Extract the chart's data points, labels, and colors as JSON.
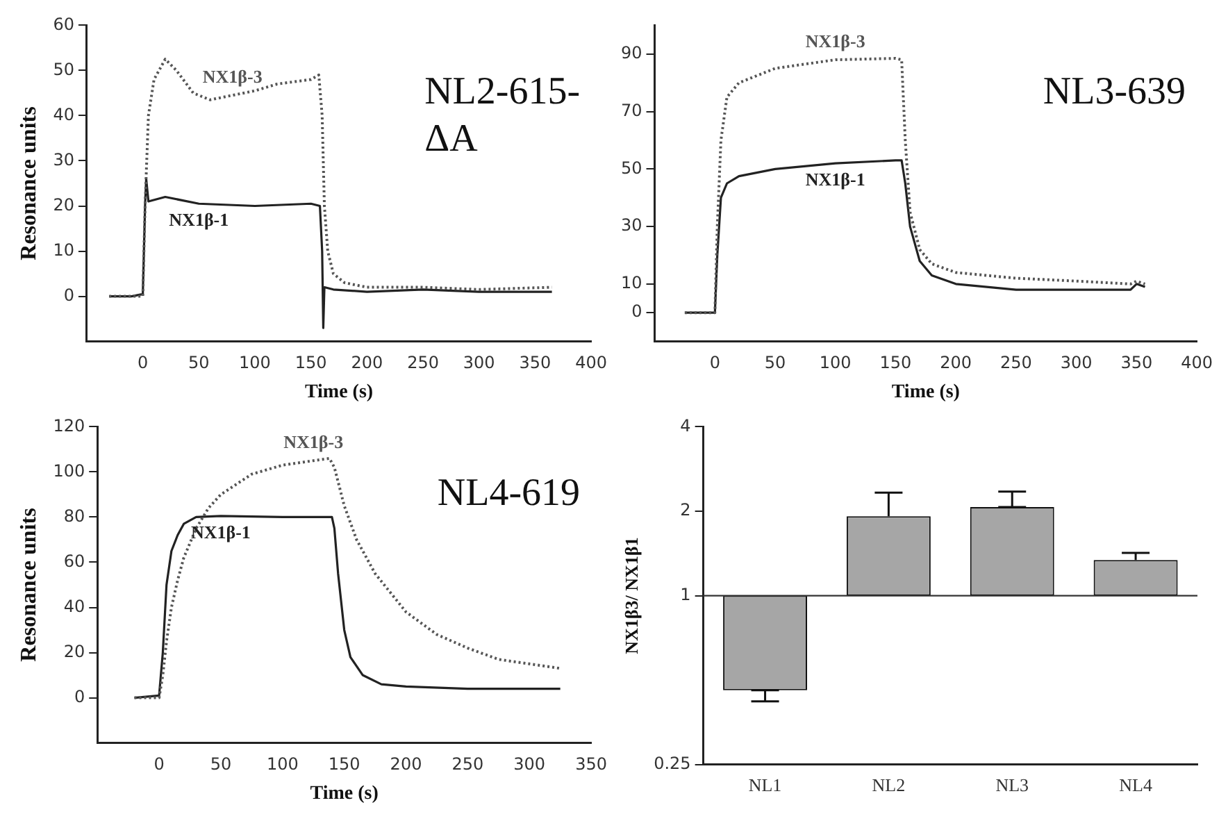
{
  "chart_data": [
    {
      "type": "line",
      "title": "NL2-615-ΔA",
      "xlabel": "Time (s)",
      "ylabel": "Resonance units",
      "xlim": [
        -50,
        400
      ],
      "ylim": [
        -10,
        60
      ],
      "xticks": [
        0,
        50,
        100,
        150,
        200,
        250,
        300,
        350,
        400
      ],
      "yticks": [
        0,
        10,
        20,
        30,
        40,
        50,
        60
      ],
      "grid": false,
      "legend": false,
      "marker": "none",
      "series": [
        {
          "name": "NX1β-3",
          "color": "#555555",
          "line_style": "dotted",
          "x": [
            -30,
            0,
            2,
            5,
            10,
            20,
            30,
            45,
            60,
            80,
            100,
            120,
            150,
            157,
            160,
            162,
            165,
            170,
            180,
            200,
            250,
            300,
            365
          ],
          "values": [
            0,
            0,
            20,
            40,
            48,
            52.5,
            50,
            45,
            43.5,
            44.5,
            45.5,
            47,
            48,
            49,
            40,
            20,
            10,
            5,
            3,
            2,
            2,
            1.5,
            2
          ]
        },
        {
          "name": "NX1β-1",
          "color": "#222222",
          "line_style": "solid",
          "x": [
            -30,
            -10,
            0,
            2,
            3,
            5,
            20,
            50,
            100,
            150,
            158,
            160,
            161,
            162,
            170,
            200,
            250,
            300,
            365
          ],
          "values": [
            0,
            0,
            0.5,
            20,
            26,
            21,
            22,
            20.5,
            20,
            20.5,
            20,
            10,
            -7,
            2,
            1.5,
            1,
            1.5,
            1,
            1
          ]
        }
      ]
    },
    {
      "type": "line",
      "title": "NL3-639",
      "xlabel": "Time (s)",
      "xlim": [
        -50,
        400
      ],
      "ylim": [
        -10,
        100
      ],
      "xticks": [
        0,
        50,
        100,
        150,
        200,
        250,
        300,
        350,
        400
      ],
      "yticks": [
        0,
        10,
        30,
        50,
        70,
        90
      ],
      "grid": false,
      "legend": false,
      "marker": "none",
      "series": [
        {
          "name": "NX1β-3",
          "color": "#555555",
          "line_style": "dotted",
          "x": [
            -25,
            0,
            2,
            5,
            10,
            20,
            50,
            100,
            150,
            155,
            158,
            162,
            170,
            180,
            200,
            250,
            300,
            345,
            350,
            357
          ],
          "values": [
            0,
            0,
            30,
            60,
            75,
            80,
            85,
            88,
            88.5,
            88,
            60,
            35,
            22,
            17,
            14,
            12,
            11,
            10,
            11,
            10
          ]
        },
        {
          "name": "NX1β-1",
          "color": "#222222",
          "line_style": "solid",
          "x": [
            -25,
            0,
            2,
            5,
            10,
            20,
            50,
            100,
            150,
            155,
            158,
            162,
            170,
            180,
            200,
            250,
            300,
            345,
            350,
            357
          ],
          "values": [
            0,
            0,
            20,
            40,
            45,
            47.5,
            50,
            52,
            53,
            53,
            45,
            30,
            18,
            13,
            10,
            8,
            8,
            8,
            10,
            9
          ]
        }
      ]
    },
    {
      "type": "line",
      "title": "NL4-619",
      "xlabel": "Time (s)",
      "ylabel": "Resonance units",
      "xlim": [
        -50,
        350
      ],
      "ylim": [
        -20,
        120
      ],
      "xticks": [
        0,
        50,
        100,
        150,
        200,
        250,
        300,
        350
      ],
      "yticks": [
        0,
        20,
        40,
        60,
        80,
        100,
        120
      ],
      "grid": false,
      "legend": false,
      "marker": "none",
      "series": [
        {
          "name": "NX1β-3",
          "color": "#555555",
          "line_style": "dotted",
          "x": [
            -20,
            0,
            3,
            6,
            10,
            15,
            20,
            30,
            40,
            50,
            75,
            100,
            125,
            138,
            142,
            150,
            160,
            175,
            200,
            225,
            250,
            275,
            300,
            325
          ],
          "values": [
            0,
            0,
            10,
            25,
            40,
            52,
            62,
            75,
            84,
            90,
            99,
            103,
            105,
            106,
            102,
            85,
            70,
            55,
            38,
            28,
            22,
            17,
            15,
            13
          ]
        },
        {
          "name": "NX1β-1",
          "color": "#222222",
          "line_style": "solid",
          "x": [
            -20,
            0,
            3,
            6,
            10,
            15,
            20,
            30,
            50,
            100,
            140,
            142,
            145,
            150,
            155,
            165,
            180,
            200,
            250,
            300,
            325
          ],
          "values": [
            0,
            1,
            20,
            50,
            65,
            72,
            77,
            80,
            80.5,
            80,
            80,
            75,
            55,
            30,
            18,
            10,
            6,
            5,
            4,
            4,
            4
          ]
        }
      ]
    },
    {
      "type": "bar",
      "ylabel": "NX1β3/ NX1β1",
      "log": "y",
      "categories": [
        "NL1",
        "NL2",
        "NL3",
        "NL4"
      ],
      "base": [
        1,
        1,
        1,
        1
      ],
      "values": [
        -0.54,
        0.92,
        1.07,
        0.34
      ],
      "errors": [
        [
          0.42,
          0.46
        ],
        [
          1.92,
          2.33
        ],
        [
          2.07,
          2.35
        ],
        [
          1.34,
          1.42
        ]
      ],
      "color": "#a6a6a6",
      "ylim": [
        0.25,
        4
      ],
      "yticks": [
        0.25,
        1,
        2,
        4
      ],
      "grid": false,
      "legend": false,
      "ref_lines": [
        {
          "axis": "y",
          "value": 1
        }
      ]
    }
  ]
}
